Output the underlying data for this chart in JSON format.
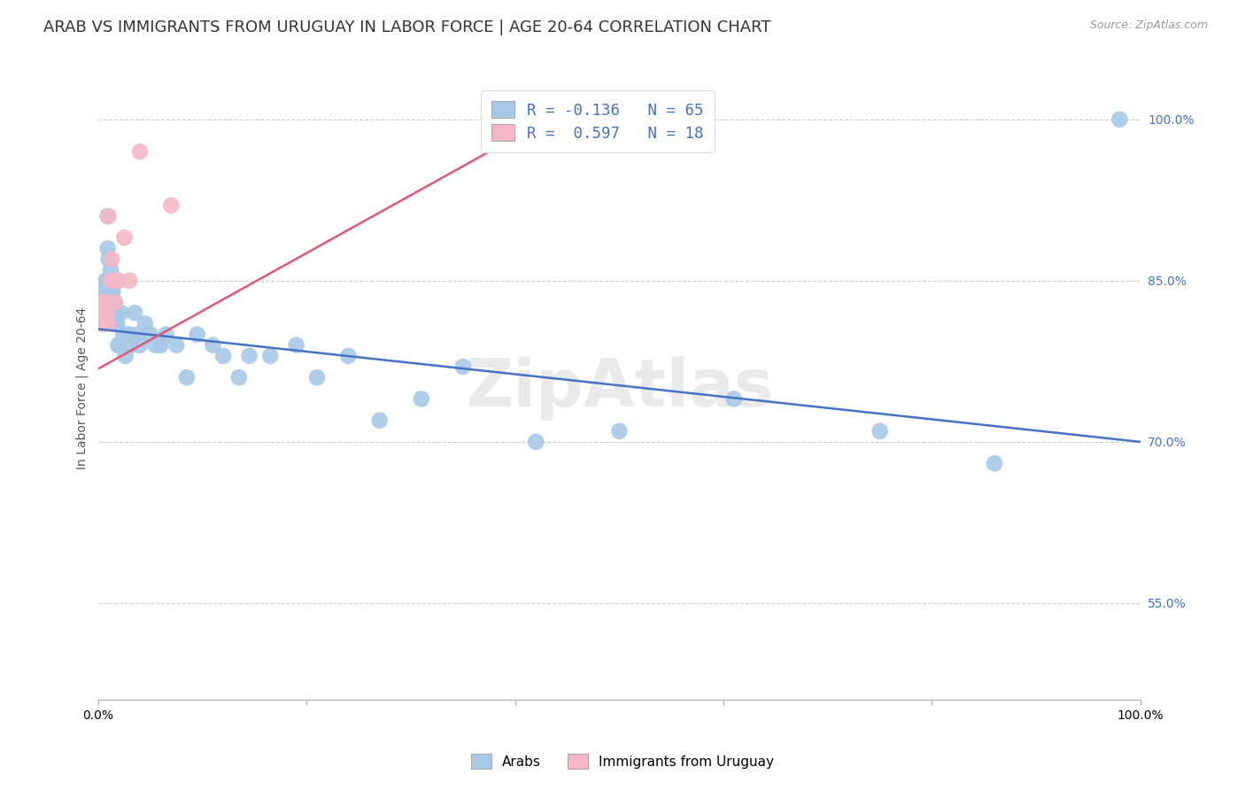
{
  "title": "ARAB VS IMMIGRANTS FROM URUGUAY IN LABOR FORCE | AGE 20-64 CORRELATION CHART",
  "source": "Source: ZipAtlas.com",
  "ylabel": "In Labor Force | Age 20-64",
  "ytick_labels": [
    "55.0%",
    "70.0%",
    "85.0%",
    "100.0%"
  ],
  "ytick_values": [
    0.55,
    0.7,
    0.85,
    1.0
  ],
  "xlim": [
    0.0,
    1.0
  ],
  "ylim": [
    0.46,
    1.04
  ],
  "legend_line1": "R = -0.136   N = 65",
  "legend_line2": "R =  0.597   N = 18",
  "arab_color": "#a8c8e8",
  "uruguay_color": "#f4b8c8",
  "arab_line_color": "#4472c4",
  "uruguay_line_color": "#e05878",
  "watermark": "ZipAtlas",
  "arab_scatter_x": [
    0.003,
    0.004,
    0.004,
    0.005,
    0.005,
    0.006,
    0.006,
    0.007,
    0.007,
    0.008,
    0.008,
    0.009,
    0.009,
    0.01,
    0.01,
    0.01,
    0.011,
    0.011,
    0.012,
    0.012,
    0.013,
    0.013,
    0.014,
    0.014,
    0.015,
    0.015,
    0.016,
    0.017,
    0.018,
    0.019,
    0.02,
    0.022,
    0.024,
    0.026,
    0.028,
    0.03,
    0.032,
    0.035,
    0.038,
    0.04,
    0.045,
    0.05,
    0.055,
    0.06,
    0.065,
    0.075,
    0.085,
    0.095,
    0.11,
    0.12,
    0.135,
    0.145,
    0.165,
    0.19,
    0.21,
    0.24,
    0.27,
    0.31,
    0.35,
    0.42,
    0.5,
    0.61,
    0.75,
    0.86,
    0.98
  ],
  "arab_scatter_y": [
    0.84,
    0.83,
    0.81,
    0.84,
    0.82,
    0.83,
    0.81,
    0.85,
    0.84,
    0.84,
    0.83,
    0.91,
    0.88,
    0.87,
    0.85,
    0.83,
    0.85,
    0.84,
    0.86,
    0.84,
    0.83,
    0.81,
    0.84,
    0.82,
    0.83,
    0.81,
    0.83,
    0.82,
    0.81,
    0.79,
    0.79,
    0.82,
    0.8,
    0.78,
    0.8,
    0.8,
    0.79,
    0.82,
    0.8,
    0.79,
    0.81,
    0.8,
    0.79,
    0.79,
    0.8,
    0.79,
    0.76,
    0.8,
    0.79,
    0.78,
    0.76,
    0.78,
    0.78,
    0.79,
    0.76,
    0.78,
    0.72,
    0.74,
    0.77,
    0.7,
    0.71,
    0.74,
    0.71,
    0.68,
    1.0
  ],
  "uruguay_scatter_x": [
    0.003,
    0.004,
    0.004,
    0.005,
    0.006,
    0.006,
    0.008,
    0.009,
    0.01,
    0.012,
    0.013,
    0.016,
    0.017,
    0.02,
    0.025,
    0.03,
    0.04,
    0.07
  ],
  "uruguay_scatter_y": [
    0.82,
    0.82,
    0.81,
    0.83,
    0.83,
    0.82,
    0.82,
    0.81,
    0.91,
    0.85,
    0.87,
    0.83,
    0.85,
    0.85,
    0.89,
    0.85,
    0.97,
    0.92
  ],
  "arab_trend_x": [
    0.0,
    1.0
  ],
  "arab_trend_y": [
    0.805,
    0.7
  ],
  "uruguay_trend_x": [
    0.0,
    0.44
  ],
  "uruguay_trend_y": [
    0.768,
    1.005
  ],
  "title_fontsize": 13,
  "axis_label_fontsize": 10,
  "tick_fontsize": 10,
  "source_fontsize": 9
}
